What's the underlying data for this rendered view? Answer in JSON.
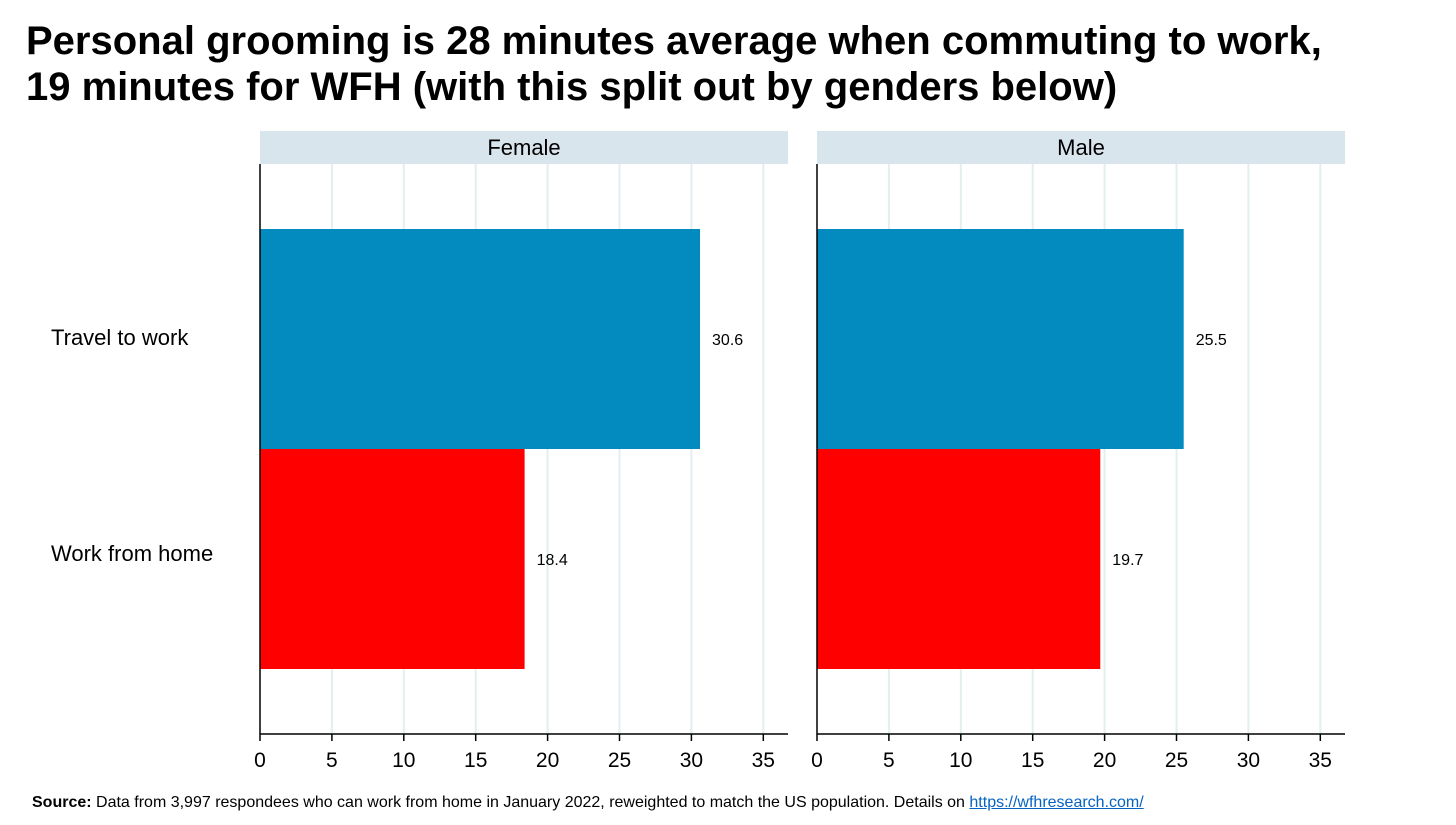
{
  "header": {
    "title_line1": "Personal grooming is 28 minutes average when commuting to work,",
    "title_line2": "19 minutes for WFH (with this split out by genders below)"
  },
  "chart_data": {
    "type": "bar",
    "orientation": "horizontal",
    "categories": [
      "Travel to work",
      "Work from home"
    ],
    "panels": [
      {
        "name": "Female",
        "series": [
          {
            "category": "Travel to work",
            "value": 30.6,
            "label": "30.6",
            "color": "#038bbf"
          },
          {
            "category": "Work from home",
            "value": 18.4,
            "label": "18.4",
            "color": "#ff0000"
          }
        ]
      },
      {
        "name": "Male",
        "series": [
          {
            "category": "Travel to work",
            "value": 25.5,
            "label": "25.5",
            "color": "#038bbf"
          },
          {
            "category": "Work from home",
            "value": 19.7,
            "label": "19.7",
            "color": "#ff0000"
          }
        ]
      }
    ],
    "xlim": [
      0,
      36.7
    ],
    "xticks": [
      0,
      5,
      10,
      15,
      20,
      25,
      30,
      35
    ],
    "grid": true,
    "colors": {
      "travel": "#038bbf",
      "wfh": "#ff0000",
      "panel_header": "#d9e5ec",
      "gridline": "#e3eef0"
    }
  },
  "footer": {
    "source_label": "Source:",
    "source_text": " Data from 3,997 respondees who can work from home in January 2022, reweighted to match the US population. Details on ",
    "link_text": "https://wfhresearch.com/"
  }
}
